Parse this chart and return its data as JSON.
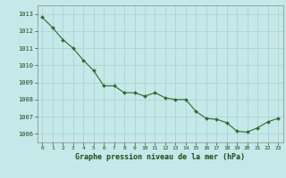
{
  "x": [
    0,
    1,
    2,
    3,
    4,
    5,
    6,
    7,
    8,
    9,
    10,
    11,
    12,
    13,
    14,
    15,
    16,
    17,
    18,
    19,
    20,
    21,
    22,
    23
  ],
  "y": [
    1012.8,
    1012.2,
    1011.5,
    1011.0,
    1010.3,
    1009.7,
    1008.8,
    1008.8,
    1008.4,
    1008.4,
    1008.2,
    1008.4,
    1008.1,
    1008.0,
    1008.0,
    1007.3,
    1006.9,
    1006.85,
    1006.65,
    1006.15,
    1006.1,
    1006.35,
    1006.7,
    1006.9
  ],
  "line_color": "#2d6a2d",
  "marker_color": "#2d6a2d",
  "bg_color": "#c5e8e8",
  "grid_color": "#a8d0d0",
  "axis_label_color": "#1a4a1a",
  "tick_label_color": "#1a4a1a",
  "xlabel": "Graphe pression niveau de la mer (hPa)",
  "ylim_min": 1005.5,
  "ylim_max": 1013.5,
  "xtick_labels": [
    "0",
    "1",
    "2",
    "3",
    "4",
    "5",
    "6",
    "7",
    "8",
    "9",
    "10",
    "11",
    "12",
    "13",
    "14",
    "15",
    "16",
    "17",
    "18",
    "19",
    "20",
    "21",
    "22",
    "23"
  ],
  "ytick_labels": [
    "1006",
    "1007",
    "1008",
    "1009",
    "1010",
    "1011",
    "1012",
    "1013"
  ]
}
